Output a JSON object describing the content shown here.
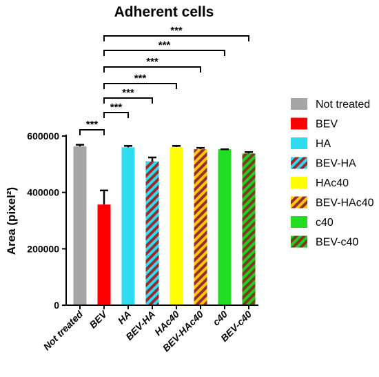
{
  "chart_data": {
    "type": "bar",
    "title": "Adherent cells",
    "ylabel": "Area (pixel²)",
    "xlabel": "",
    "ylim": [
      0,
      600000
    ],
    "yticks": [
      0,
      200000,
      400000,
      600000
    ],
    "yticklabels": [
      "0",
      "200000",
      "400000",
      "600000"
    ],
    "categories": [
      "Not treated",
      "BEV",
      "HA",
      "BEV-HA",
      "HAc40",
      "BEV-HAc40",
      "c40",
      "BEV-c40"
    ],
    "values": [
      563000,
      357000,
      560000,
      510000,
      561000,
      553000,
      553000,
      538000
    ],
    "error": [
      6000,
      50000,
      5000,
      14000,
      4000,
      5000,
      0,
      5000
    ],
    "legend_position": "right",
    "legend": [
      {
        "label": "Not treated",
        "color": "#a6a6a6",
        "pattern": "solid"
      },
      {
        "label": "BEV",
        "color": "#ff0000",
        "pattern": "solid"
      },
      {
        "label": "HA",
        "color": "#2fdcf2",
        "pattern": "solid"
      },
      {
        "label": "BEV-HA",
        "color": "#2fdcf2",
        "color2": "#9b2a2a",
        "pattern": "stripe"
      },
      {
        "label": "HAc40",
        "color": "#ffff00",
        "pattern": "solid"
      },
      {
        "label": "BEV-HAc40",
        "color": "#ffcc00",
        "color2": "#9b2a2a",
        "pattern": "stripe"
      },
      {
        "label": "c40",
        "color": "#22dd22",
        "pattern": "solid"
      },
      {
        "label": "BEV-c40",
        "color": "#22cc22",
        "color2": "#7a3b1e",
        "pattern": "stripe"
      }
    ],
    "significance": [
      {
        "from": "Not treated",
        "to": "BEV",
        "label": "***"
      },
      {
        "from": "BEV",
        "to": "HA",
        "label": "***"
      },
      {
        "from": "BEV",
        "to": "BEV-HA",
        "label": "***"
      },
      {
        "from": "BEV",
        "to": "HAc40",
        "label": "***"
      },
      {
        "from": "BEV",
        "to": "BEV-HAc40",
        "label": "***"
      },
      {
        "from": "BEV",
        "to": "c40",
        "label": "***"
      },
      {
        "from": "BEV",
        "to": "BEV-c40",
        "label": "***"
      }
    ]
  }
}
